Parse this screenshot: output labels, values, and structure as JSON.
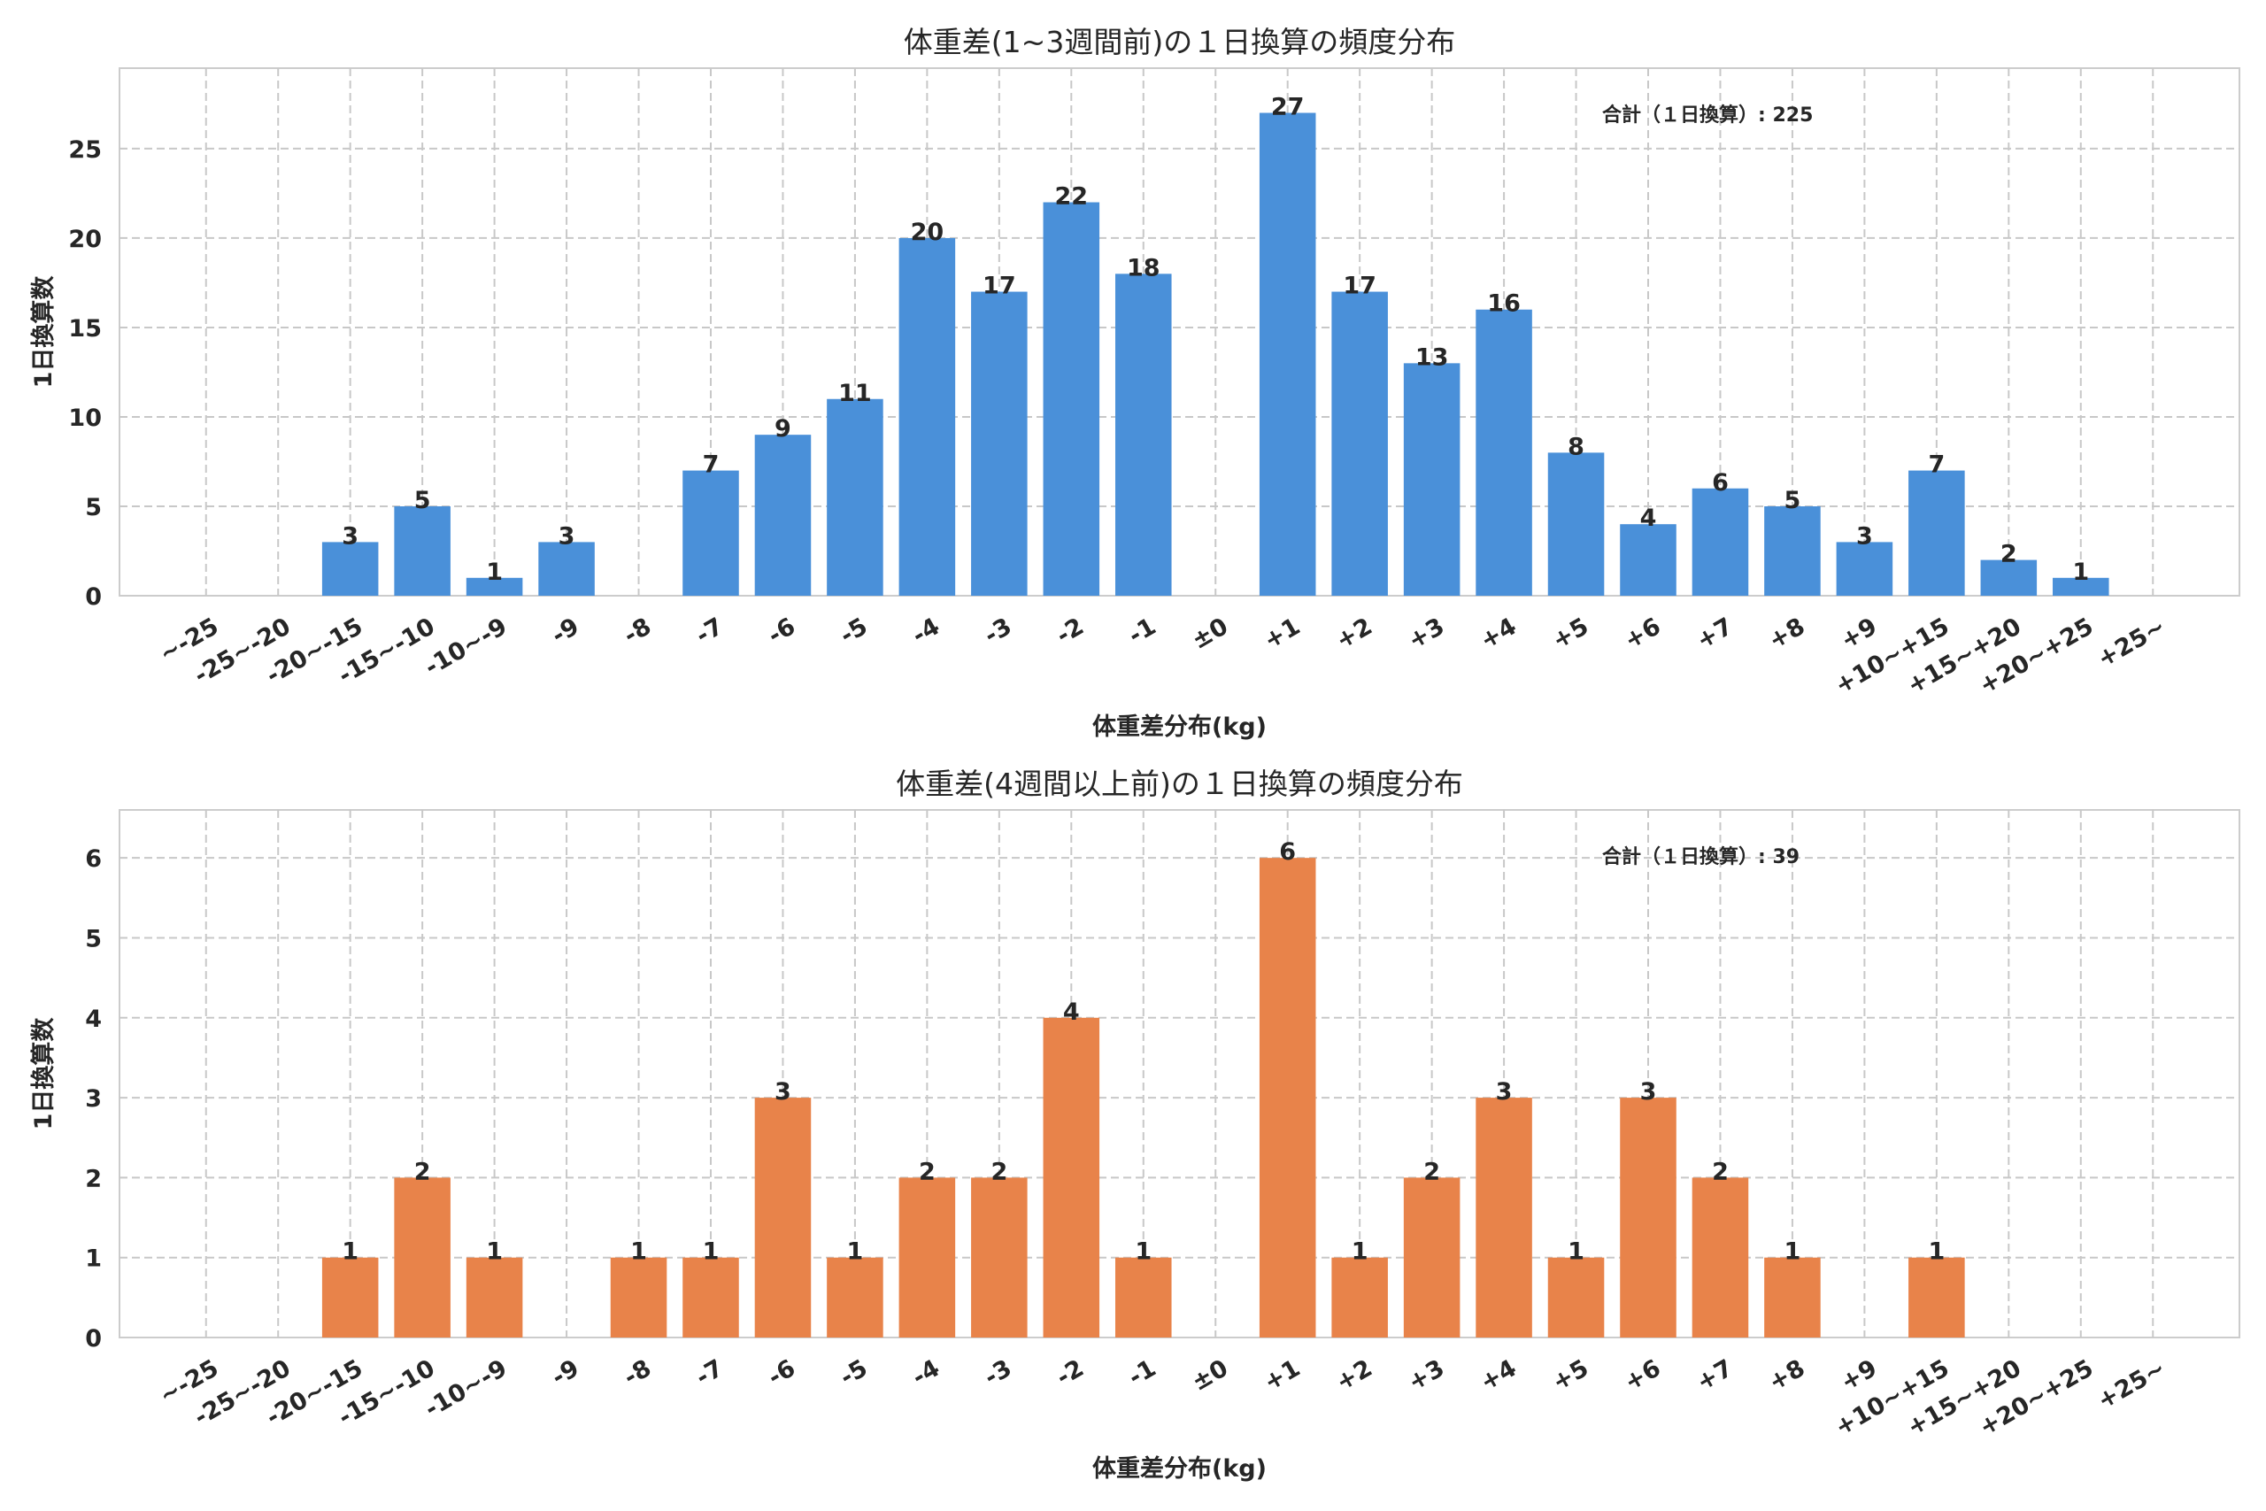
{
  "chart_data": [
    {
      "type": "bar",
      "title": "体重差(1~3週間前)の１日換算の頻度分布",
      "xlabel": "体重差分布(kg)",
      "ylabel": "1日換算数",
      "annotation": "合計（１日換算）: 225",
      "color": "#4a90d9",
      "ylim": [
        0,
        29.5
      ],
      "yticks": [
        0,
        5,
        10,
        15,
        20,
        25
      ],
      "grid": true,
      "categories": [
        "~-25",
        "-25~-20",
        "-20~-15",
        "-15~-10",
        "-10~-9",
        "-9",
        "-8",
        "-7",
        "-6",
        "-5",
        "-4",
        "-3",
        "-2",
        "-1",
        "±0",
        "+1",
        "+2",
        "+3",
        "+4",
        "+5",
        "+6",
        "+7",
        "+8",
        "+9",
        "+10~+15",
        "+15~+20",
        "+20~+25",
        "+25~"
      ],
      "values": [
        0,
        0,
        3,
        5,
        1,
        3,
        0,
        7,
        9,
        11,
        20,
        17,
        22,
        18,
        0,
        27,
        17,
        13,
        16,
        8,
        4,
        6,
        5,
        3,
        7,
        2,
        1,
        0
      ]
    },
    {
      "type": "bar",
      "title": "体重差(4週間以上前)の１日換算の頻度分布",
      "xlabel": "体重差分布(kg)",
      "ylabel": "1日換算数",
      "annotation": "合計（１日換算）: 39",
      "color": "#e8834a",
      "ylim": [
        0,
        6.6
      ],
      "yticks": [
        0,
        1,
        2,
        3,
        4,
        5,
        6
      ],
      "grid": true,
      "categories": [
        "~-25",
        "-25~-20",
        "-20~-15",
        "-15~-10",
        "-10~-9",
        "-9",
        "-8",
        "-7",
        "-6",
        "-5",
        "-4",
        "-3",
        "-2",
        "-1",
        "±0",
        "+1",
        "+2",
        "+3",
        "+4",
        "+5",
        "+6",
        "+7",
        "+8",
        "+9",
        "+10~+15",
        "+15~+20",
        "+20~+25",
        "+25~"
      ],
      "values": [
        0,
        0,
        1,
        2,
        1,
        0,
        1,
        1,
        3,
        1,
        2,
        2,
        4,
        1,
        0,
        6,
        1,
        2,
        3,
        1,
        3,
        2,
        1,
        0,
        1,
        0,
        0,
        0
      ]
    }
  ]
}
